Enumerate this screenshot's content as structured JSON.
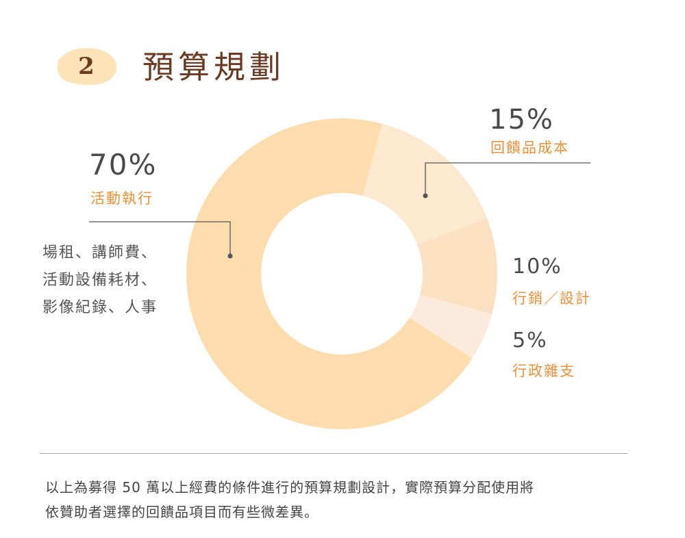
{
  "header": {
    "step_number": "2",
    "title": "預算規劃"
  },
  "colors": {
    "badge": "#fce3b8",
    "accent": "#e8913b",
    "title": "#6b3a22"
  },
  "chart_data": {
    "type": "pie",
    "donut": true,
    "slices": [
      {
        "label": "回饋品成本",
        "percent_label": "15%",
        "value": 15,
        "color": "#fde9d0"
      },
      {
        "label": "行銷／設計",
        "percent_label": "10%",
        "value": 10,
        "color": "#fbe0c2"
      },
      {
        "label": "行政雜支",
        "percent_label": "5%",
        "value": 5,
        "color": "#fcebdc"
      },
      {
        "label": "活動執行",
        "percent_label": "70%",
        "value": 70,
        "color": "#fddcae"
      }
    ]
  },
  "labels": {
    "activity": {
      "percent": "70%",
      "name": "活動執行"
    },
    "gift": {
      "percent": "15%",
      "name": "回饋品成本"
    },
    "marketing": {
      "percent": "10%",
      "name": "行銷／設計"
    },
    "admin": {
      "percent": "5%",
      "name": "行政雜支"
    }
  },
  "activity_note": {
    "lines": [
      "場租、講師費、",
      "活動設備耗材、",
      "影像紀錄、人事"
    ]
  },
  "footer": {
    "lines": [
      "以上為募得 50 萬以上經費的條件進行的預算規劃設計，實際預算分配使用將",
      "依贊助者選擇的回饋品項目而有些微差異。"
    ]
  }
}
